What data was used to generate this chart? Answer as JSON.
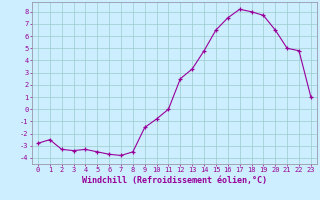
{
  "x": [
    0,
    1,
    2,
    3,
    4,
    5,
    6,
    7,
    8,
    9,
    10,
    11,
    12,
    13,
    14,
    15,
    16,
    17,
    18,
    19,
    20,
    21,
    22,
    23
  ],
  "y": [
    -2.8,
    -2.5,
    -3.3,
    -3.4,
    -3.3,
    -3.5,
    -3.7,
    -3.8,
    -3.5,
    -1.5,
    -0.8,
    0.0,
    2.5,
    3.3,
    4.8,
    6.5,
    7.5,
    8.2,
    8.0,
    7.7,
    6.5,
    5.0,
    4.8,
    1.0
  ],
  "xlabel": "Windchill (Refroidissement éolien,°C)",
  "yticks": [
    -4,
    -3,
    -2,
    -1,
    0,
    1,
    2,
    3,
    4,
    5,
    6,
    7,
    8
  ],
  "xticks": [
    0,
    1,
    2,
    3,
    4,
    5,
    6,
    7,
    8,
    9,
    10,
    11,
    12,
    13,
    14,
    15,
    16,
    17,
    18,
    19,
    20,
    21,
    22,
    23
  ],
  "ylim": [
    -4.5,
    8.8
  ],
  "xlim": [
    -0.5,
    23.5
  ],
  "line_color": "#990099",
  "marker_color": "#990099",
  "bg_color": "#cceeff",
  "grid_color": "#99cccc",
  "border_color": "#9999aa",
  "xlabel_color": "#990099",
  "tick_color": "#990099",
  "tick_fontsize": 5.0,
  "xlabel_fontsize": 6.0,
  "linewidth": 0.8,
  "markersize": 3.0
}
